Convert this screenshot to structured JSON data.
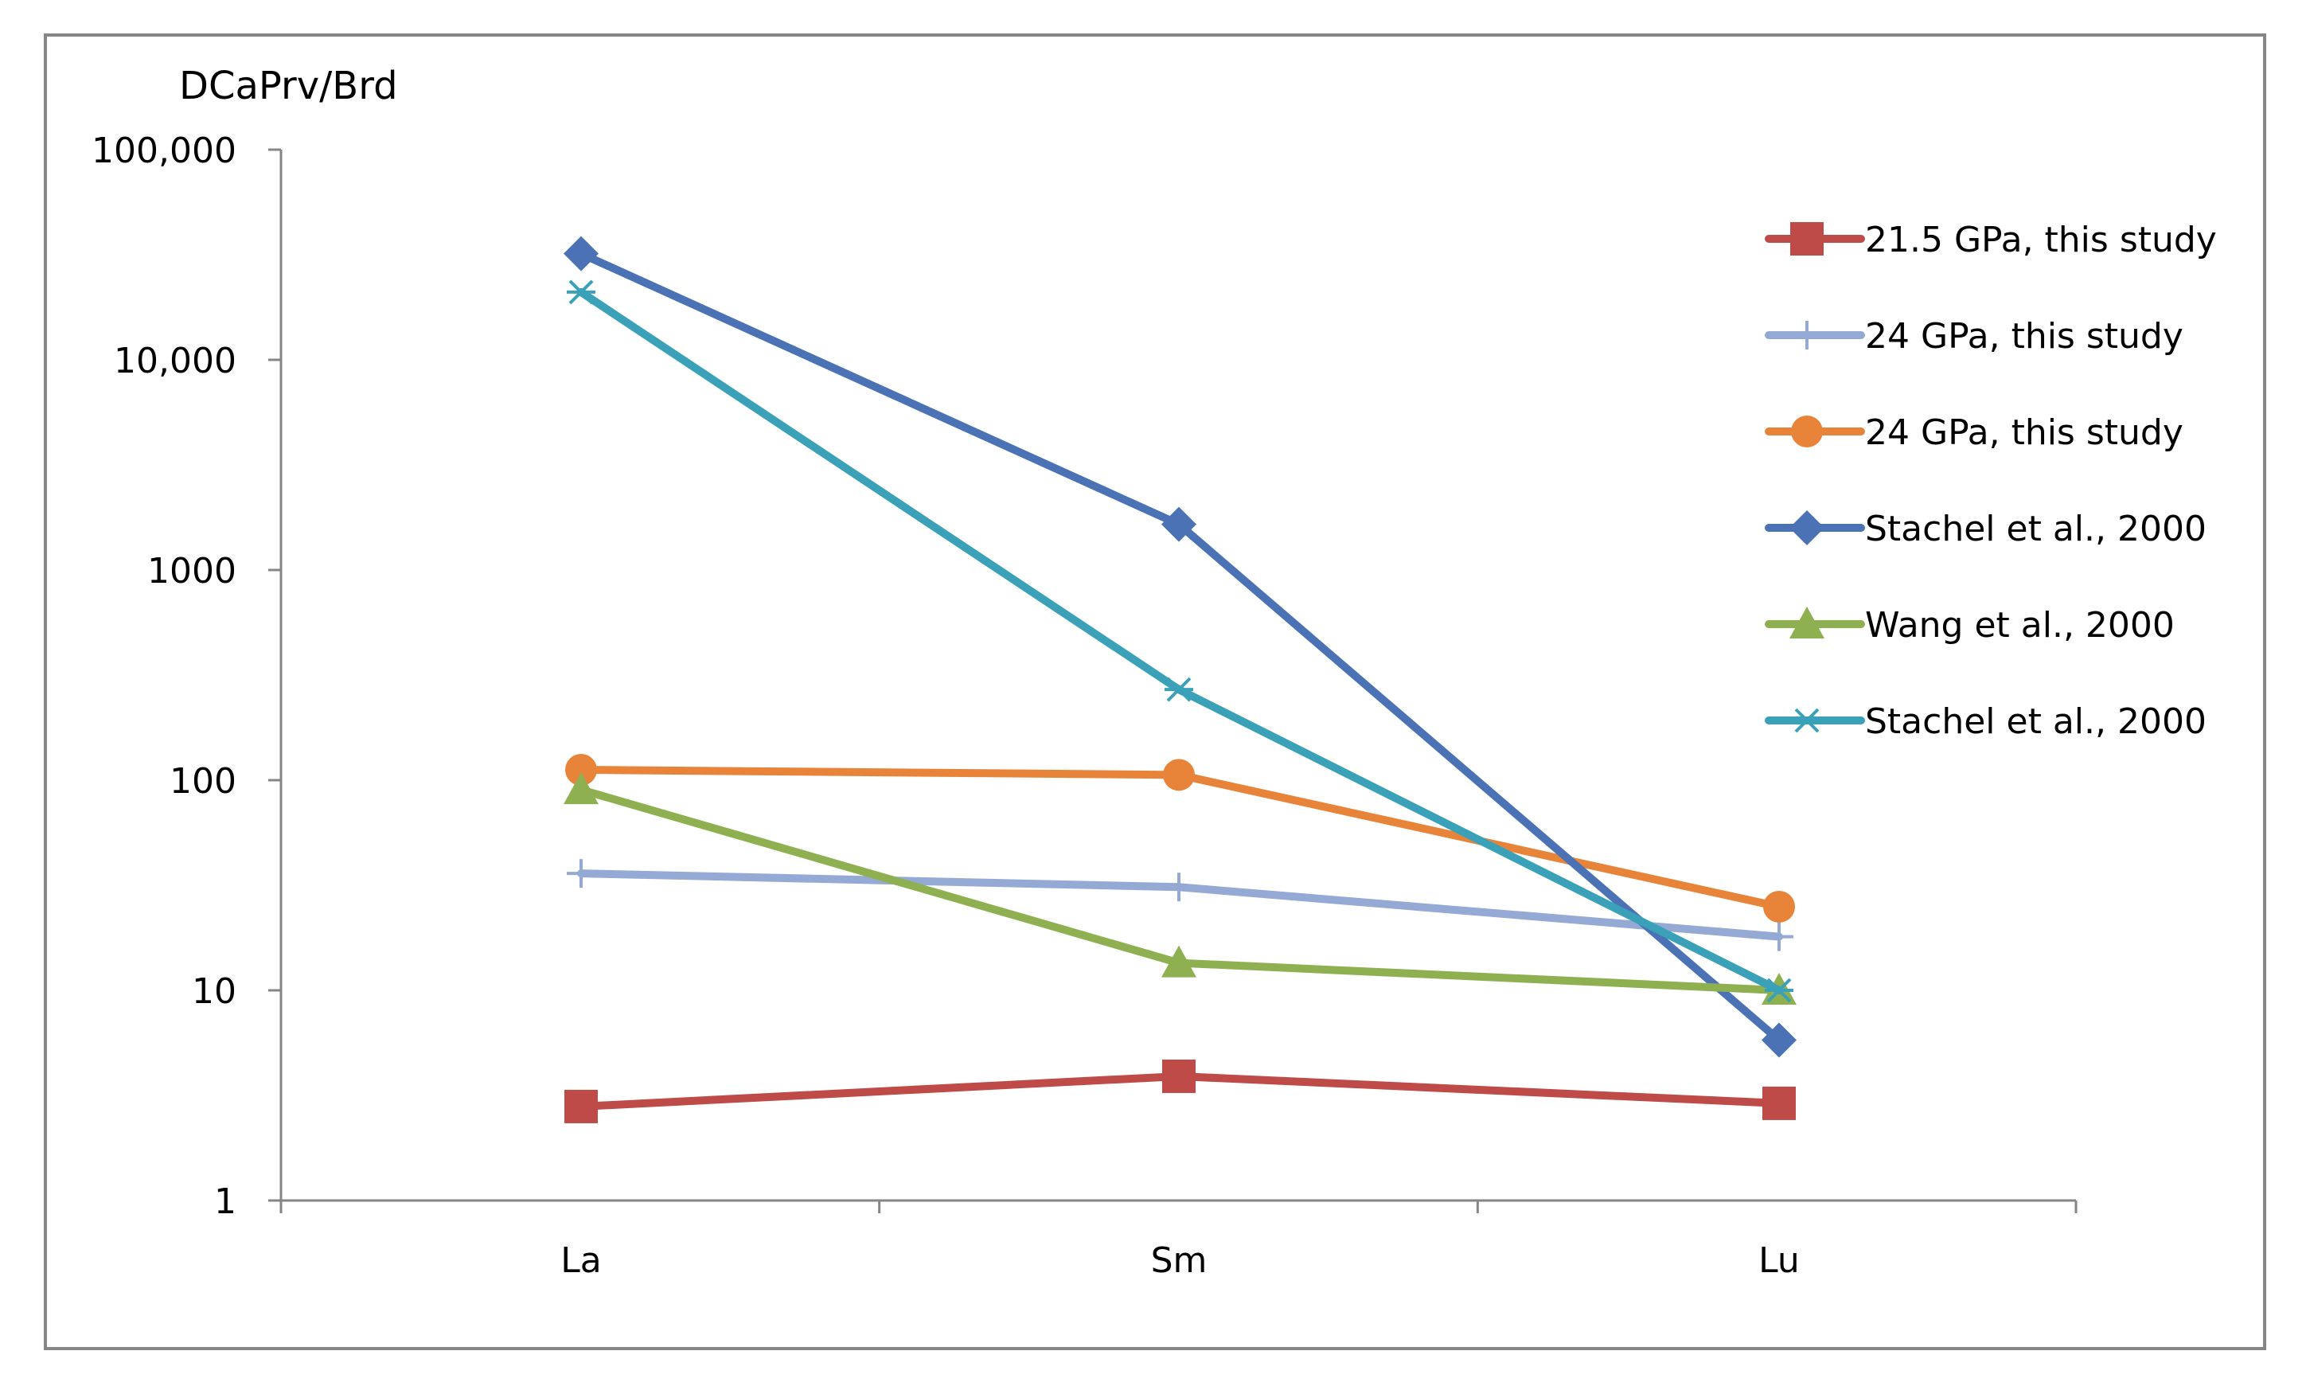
{
  "chart_data": {
    "type": "line",
    "y_axis_title": "DCaPrv/Brd",
    "y_scale": "log",
    "ylim": [
      1,
      100000
    ],
    "y_ticks": [
      {
        "value": 1,
        "label": "1"
      },
      {
        "value": 10,
        "label": "10"
      },
      {
        "value": 100,
        "label": "100"
      },
      {
        "value": 1000,
        "label": "1000"
      },
      {
        "value": 10000,
        "label": "10,000"
      },
      {
        "value": 100000,
        "label": "100,000"
      }
    ],
    "categories": [
      "La",
      "Sm",
      "Lu"
    ],
    "grid": false,
    "legend_position": "right",
    "series": [
      {
        "name": "21.5 GPa, this study",
        "color": "#be4b48",
        "marker": "square",
        "values": [
          2.8,
          3.9,
          2.9
        ]
      },
      {
        "name": "24 GPa, this study",
        "color": "#94a9d4",
        "marker": "plus",
        "values": [
          36,
          31,
          18
        ]
      },
      {
        "name": "24 GPa, this study",
        "color": "#e8843a",
        "marker": "circle",
        "values": [
          112,
          106,
          25
        ]
      },
      {
        "name": "Stachel et al., 2000",
        "color": "#4a72b4",
        "marker": "diamond",
        "values": [
          32000,
          1650,
          5.8
        ]
      },
      {
        "name": "Wang et al., 2000",
        "color": "#8eb050",
        "marker": "triangle",
        "values": [
          90,
          13.5,
          10
        ]
      },
      {
        "name": "Stachel et al., 2000",
        "color": "#3ba1b8",
        "marker": "star",
        "values": [
          21000,
          270,
          10
        ]
      }
    ]
  }
}
